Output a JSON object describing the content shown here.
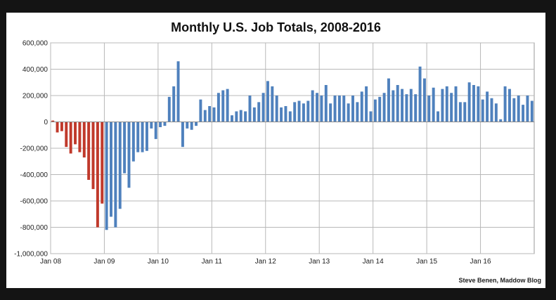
{
  "chart_data": {
    "type": "bar",
    "title": "Monthly U.S. Job Totals, 2008-2016",
    "xlabel": "",
    "ylabel": "",
    "ylim": [
      -1000000,
      600000
    ],
    "ytick_values": [
      600000,
      400000,
      200000,
      0,
      -200000,
      -400000,
      -600000,
      -800000,
      -1000000
    ],
    "ytick_labels": [
      "600,000",
      "400,000",
      "200,000",
      "0",
      "-200,000",
      "-400,000",
      "-600,000",
      "-800,000",
      "-1,000,000"
    ],
    "xtick_labels": [
      "Jan 08",
      "Jan 09",
      "Jan 10",
      "Jan 11",
      "Jan 12",
      "Jan 13",
      "Jan 14",
      "Jan 15",
      "Jan 16"
    ],
    "xtick_month_index": [
      0,
      12,
      24,
      36,
      48,
      60,
      72,
      84,
      96
    ],
    "grid": true,
    "colors": {
      "negative_early": "#c0392b",
      "main": "#4f81bd"
    },
    "color_split_index": 12,
    "series": [
      {
        "values": [
          10000,
          -80000,
          -70000,
          -190000,
          -240000,
          -170000,
          -230000,
          -270000,
          -440000,
          -510000,
          -800000,
          -620000,
          -820000,
          -720000,
          -800000,
          -660000,
          -390000,
          -500000,
          -300000,
          -230000,
          -230000,
          -220000,
          -50000,
          -130000,
          -40000,
          -30000,
          190000,
          270000,
          460000,
          -190000,
          -50000,
          -60000,
          -30000,
          170000,
          90000,
          120000,
          110000,
          220000,
          240000,
          250000,
          50000,
          80000,
          90000,
          80000,
          200000,
          110000,
          150000,
          220000,
          310000,
          270000,
          200000,
          110000,
          120000,
          80000,
          150000,
          160000,
          140000,
          160000,
          240000,
          220000,
          200000,
          280000,
          140000,
          200000,
          200000,
          200000,
          140000,
          200000,
          150000,
          230000,
          270000,
          80000,
          170000,
          190000,
          220000,
          330000,
          240000,
          280000,
          250000,
          210000,
          250000,
          210000,
          420000,
          330000,
          200000,
          260000,
          80000,
          250000,
          270000,
          220000,
          270000,
          150000,
          150000,
          300000,
          280000,
          270000,
          170000,
          230000,
          180000,
          140000,
          20000,
          270000,
          250000,
          180000,
          200000,
          130000,
          200000,
          160000
        ]
      }
    ],
    "credit": "Steve Benen, Maddow Blog"
  }
}
